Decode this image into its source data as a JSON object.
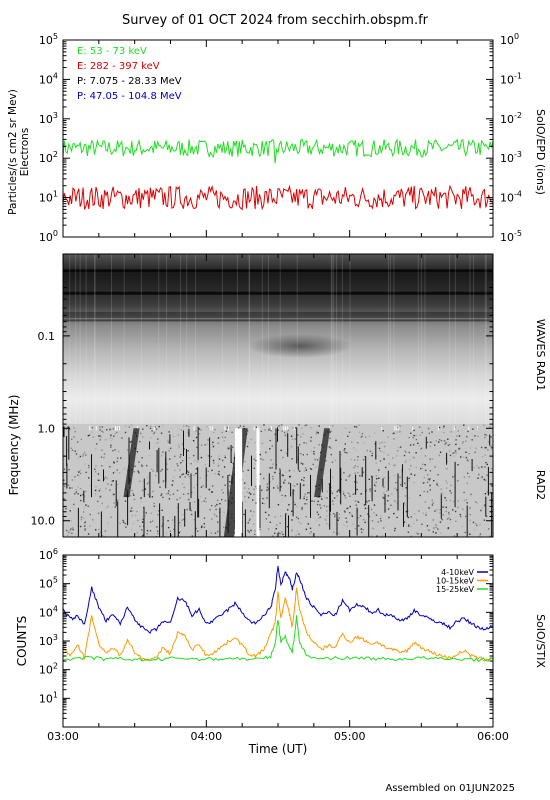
{
  "title": "Survey of 01 OCT 2024 from secchirh.obspm.fr",
  "footer": "Assembled on 01JUN2025",
  "colors": {
    "green": "#22dd22",
    "red": "#dd0000",
    "black": "#000000",
    "blue": "#0000bb",
    "orange": "#ff9900"
  },
  "chart_data": [
    {
      "type": "line",
      "panel": "SoIO/EPD",
      "ylabel_lines": [
        "Particles/(s cm2 sr Mev)",
        "Electrons"
      ],
      "right_label": "SoIO/EPD (ions)",
      "left_axis": {
        "scale": "log",
        "ylim": [
          1,
          100000
        ],
        "ticks": [
          {
            "base": "10",
            "exp": "0"
          },
          {
            "base": "10",
            "exp": "1"
          },
          {
            "base": "10",
            "exp": "2"
          },
          {
            "base": "10",
            "exp": "3"
          },
          {
            "base": "10",
            "exp": "4"
          },
          {
            "base": "10",
            "exp": "5"
          }
        ]
      },
      "right_axis": {
        "scale": "log",
        "ylim": [
          1e-05,
          1
        ],
        "ticks": [
          {
            "base": "10",
            "exp": "-5"
          },
          {
            "base": "10",
            "exp": "-4"
          },
          {
            "base": "10",
            "exp": "-3"
          },
          {
            "base": "10",
            "exp": "-2"
          },
          {
            "base": "10",
            "exp": "-1"
          },
          {
            "base": "10",
            "exp": "0"
          }
        ]
      },
      "x_range_hours": [
        3,
        6
      ],
      "legend_placement": "top-left",
      "series": [
        {
          "name": "E: 53 - 73 keV",
          "color": "#22dd22",
          "level": 180,
          "spread": 0.22
        },
        {
          "name": "E: 282 - 397 keV",
          "color": "#dd0000",
          "level": 10,
          "spread": 0.3
        },
        {
          "name": "P: 7.075 - 28.33 MeV",
          "color": "#000000"
        },
        {
          "name": "P: 47.05 - 104.8 MeV",
          "color": "#0000bb"
        }
      ]
    },
    {
      "type": "heatmap",
      "panel": "WAVES RAD1 / RAD2",
      "ylabel": "Frequency (MHz)",
      "right_labels": [
        "WAVES RAD1",
        "RAD2"
      ],
      "y_scale": "log-reversed",
      "ylim_mhz": [
        0.013,
        15
      ],
      "y_ticks": [
        "0.1",
        "1.0",
        "10.0"
      ],
      "x_range_hours": [
        3,
        6
      ],
      "features": {
        "bright_bands_mhz": [
          0.02,
          0.035
        ],
        "radio_burst_hours": [
          4.15,
          4.78,
          3.45
        ],
        "data_gaps_hours": [
          [
            4.2,
            4.25
          ],
          [
            4.35,
            4.37
          ]
        ]
      }
    },
    {
      "type": "line",
      "panel": "SoIO/STIX",
      "ylabel": "COUNTS",
      "right_label": "SoIO/STIX",
      "xlabel": "Time (UT)",
      "x_range_hours": [
        3,
        6
      ],
      "x_ticks": [
        "03:00",
        "04:00",
        "05:00",
        "06:00"
      ],
      "y_axis": {
        "scale": "log",
        "ylim": [
          1,
          1000000
        ],
        "ticks": [
          {
            "base": "10",
            "exp": "1"
          },
          {
            "base": "10",
            "exp": "2"
          },
          {
            "base": "10",
            "exp": "3"
          },
          {
            "base": "10",
            "exp": "4"
          },
          {
            "base": "10",
            "exp": "5"
          },
          {
            "base": "10",
            "exp": "6"
          }
        ]
      },
      "legend_placement": "top-right",
      "series": [
        {
          "name": "4-10keV",
          "color": "#0000bb",
          "x": [
            3.0,
            3.05,
            3.1,
            3.15,
            3.2,
            3.25,
            3.3,
            3.35,
            3.4,
            3.45,
            3.5,
            3.55,
            3.6,
            3.65,
            3.7,
            3.75,
            3.8,
            3.85,
            3.9,
            3.95,
            4.0,
            4.05,
            4.1,
            4.15,
            4.2,
            4.25,
            4.3,
            4.35,
            4.4,
            4.45,
            4.48,
            4.5,
            4.52,
            4.55,
            4.58,
            4.6,
            4.63,
            4.65,
            4.7,
            4.75,
            4.8,
            4.85,
            4.9,
            4.95,
            5.0,
            5.05,
            5.1,
            5.15,
            5.2,
            5.25,
            5.3,
            5.35,
            5.4,
            5.45,
            5.5,
            5.55,
            5.6,
            5.65,
            5.7,
            5.75,
            5.8,
            5.85,
            5.9,
            5.95,
            6.0
          ],
          "values": [
            12000,
            6000,
            7000,
            4000,
            70000,
            15000,
            5000,
            8000,
            4000,
            15000,
            6000,
            3000,
            2000,
            2500,
            5000,
            4000,
            30000,
            25000,
            8000,
            12000,
            4000,
            5000,
            8000,
            12000,
            20000,
            10000,
            5000,
            4000,
            8000,
            15000,
            60000,
            400000,
            90000,
            250000,
            150000,
            60000,
            250000,
            150000,
            30000,
            15000,
            8000,
            10000,
            8000,
            25000,
            12000,
            18000,
            15000,
            10000,
            12000,
            8000,
            8000,
            5000,
            6000,
            12000,
            8000,
            6000,
            5000,
            4000,
            3000,
            5000,
            6000,
            4000,
            3000,
            2500,
            3500
          ]
        },
        {
          "name": "10-15keV",
          "color": "#ff9900",
          "x": [
            3.0,
            3.05,
            3.1,
            3.15,
            3.2,
            3.25,
            3.3,
            3.35,
            3.4,
            3.45,
            3.5,
            3.55,
            3.6,
            3.65,
            3.7,
            3.75,
            3.8,
            3.85,
            3.9,
            3.95,
            4.0,
            4.05,
            4.1,
            4.15,
            4.2,
            4.25,
            4.3,
            4.35,
            4.4,
            4.45,
            4.48,
            4.5,
            4.52,
            4.55,
            4.58,
            4.6,
            4.63,
            4.65,
            4.7,
            4.75,
            4.8,
            4.85,
            4.9,
            4.95,
            5.0,
            5.05,
            5.1,
            5.15,
            5.2,
            5.25,
            5.3,
            5.35,
            5.4,
            5.45,
            5.5,
            5.55,
            5.6,
            5.65,
            5.7,
            5.75,
            5.8,
            5.85,
            5.9,
            5.95,
            6.0
          ],
          "values": [
            600,
            300,
            800,
            250,
            8000,
            800,
            350,
            600,
            300,
            1200,
            400,
            250,
            220,
            250,
            600,
            350,
            2000,
            1500,
            500,
            800,
            300,
            400,
            600,
            900,
            1400,
            700,
            350,
            300,
            500,
            1800,
            4000,
            50000,
            6000,
            30000,
            9000,
            3000,
            70000,
            12000,
            2000,
            900,
            500,
            700,
            600,
            1800,
            900,
            1400,
            1100,
            800,
            900,
            600,
            500,
            400,
            450,
            900,
            600,
            450,
            350,
            300,
            250,
            350,
            450,
            300,
            250,
            220,
            260
          ]
        },
        {
          "name": "15-25keV",
          "color": "#22dd22",
          "x": [
            3.0,
            3.1,
            3.2,
            3.3,
            3.4,
            3.5,
            3.6,
            3.7,
            3.8,
            3.9,
            4.0,
            4.1,
            4.2,
            4.3,
            4.4,
            4.45,
            4.48,
            4.5,
            4.52,
            4.55,
            4.58,
            4.6,
            4.63,
            4.65,
            4.7,
            4.8,
            4.9,
            5.0,
            5.1,
            5.2,
            5.3,
            5.4,
            5.5,
            5.6,
            5.7,
            5.8,
            5.9,
            6.0
          ],
          "values": [
            220,
            250,
            260,
            230,
            240,
            230,
            220,
            230,
            260,
            240,
            230,
            240,
            250,
            230,
            240,
            300,
            800,
            6000,
            900,
            1500,
            600,
            400,
            7000,
            900,
            300,
            240,
            260,
            250,
            260,
            240,
            230,
            240,
            260,
            240,
            230,
            240,
            220,
            230
          ]
        }
      ]
    }
  ]
}
